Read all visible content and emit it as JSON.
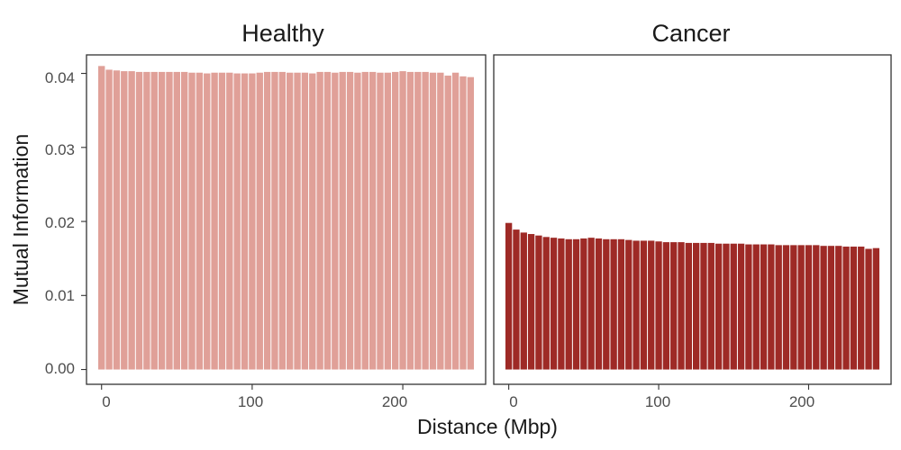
{
  "chart_data": {
    "type": "bar",
    "xlabel": "Distance (Mbp)",
    "ylabel": "Mutual Information",
    "xlim": [
      -10,
      255
    ],
    "ylim": [
      -0.002,
      0.0425
    ],
    "x_ticks": [
      0,
      100,
      200
    ],
    "x_tick_labels": [
      "0",
      "100",
      "200"
    ],
    "y_ticks": [
      0.0,
      0.01,
      0.02,
      0.03,
      0.04
    ],
    "y_tick_labels": [
      "0.00",
      "0.01",
      "0.02",
      "0.03",
      "0.04"
    ],
    "grid": false,
    "legend": "none",
    "bar_width": 4.4,
    "x": [
      0,
      5,
      10,
      15,
      20,
      25,
      30,
      35,
      40,
      45,
      50,
      55,
      60,
      65,
      70,
      75,
      80,
      85,
      90,
      95,
      100,
      105,
      110,
      115,
      120,
      125,
      130,
      135,
      140,
      145,
      150,
      155,
      160,
      165,
      170,
      175,
      180,
      185,
      190,
      195,
      200,
      205,
      210,
      215,
      220,
      225,
      230,
      235,
      240,
      245
    ],
    "panels": [
      {
        "title": "Healthy",
        "color": "#e0a098",
        "values": [
          0.041,
          0.0405,
          0.0404,
          0.0403,
          0.0403,
          0.0402,
          0.0402,
          0.0402,
          0.0402,
          0.0402,
          0.0402,
          0.0402,
          0.0401,
          0.0401,
          0.04,
          0.0401,
          0.0401,
          0.0401,
          0.04,
          0.04,
          0.04,
          0.0401,
          0.0402,
          0.0402,
          0.0402,
          0.0401,
          0.0401,
          0.0401,
          0.04,
          0.0402,
          0.0402,
          0.0401,
          0.0402,
          0.0402,
          0.0401,
          0.0402,
          0.0402,
          0.0401,
          0.0401,
          0.0402,
          0.0403,
          0.0402,
          0.0402,
          0.0402,
          0.0401,
          0.0401,
          0.0397,
          0.0401,
          0.0396,
          0.0395
        ]
      },
      {
        "title": "Cancer",
        "color": "#9e2a26",
        "values": [
          0.0198,
          0.0189,
          0.0185,
          0.0183,
          0.0181,
          0.0179,
          0.0178,
          0.0177,
          0.0176,
          0.0176,
          0.0177,
          0.0178,
          0.0177,
          0.0176,
          0.0176,
          0.0176,
          0.0175,
          0.0174,
          0.0174,
          0.0174,
          0.0173,
          0.0172,
          0.0172,
          0.0172,
          0.0171,
          0.0171,
          0.0171,
          0.0171,
          0.017,
          0.017,
          0.017,
          0.017,
          0.0169,
          0.0169,
          0.0169,
          0.0169,
          0.0168,
          0.0168,
          0.0168,
          0.0168,
          0.0168,
          0.0168,
          0.0167,
          0.0167,
          0.0167,
          0.0166,
          0.0166,
          0.0166,
          0.0163,
          0.0164
        ]
      }
    ]
  }
}
